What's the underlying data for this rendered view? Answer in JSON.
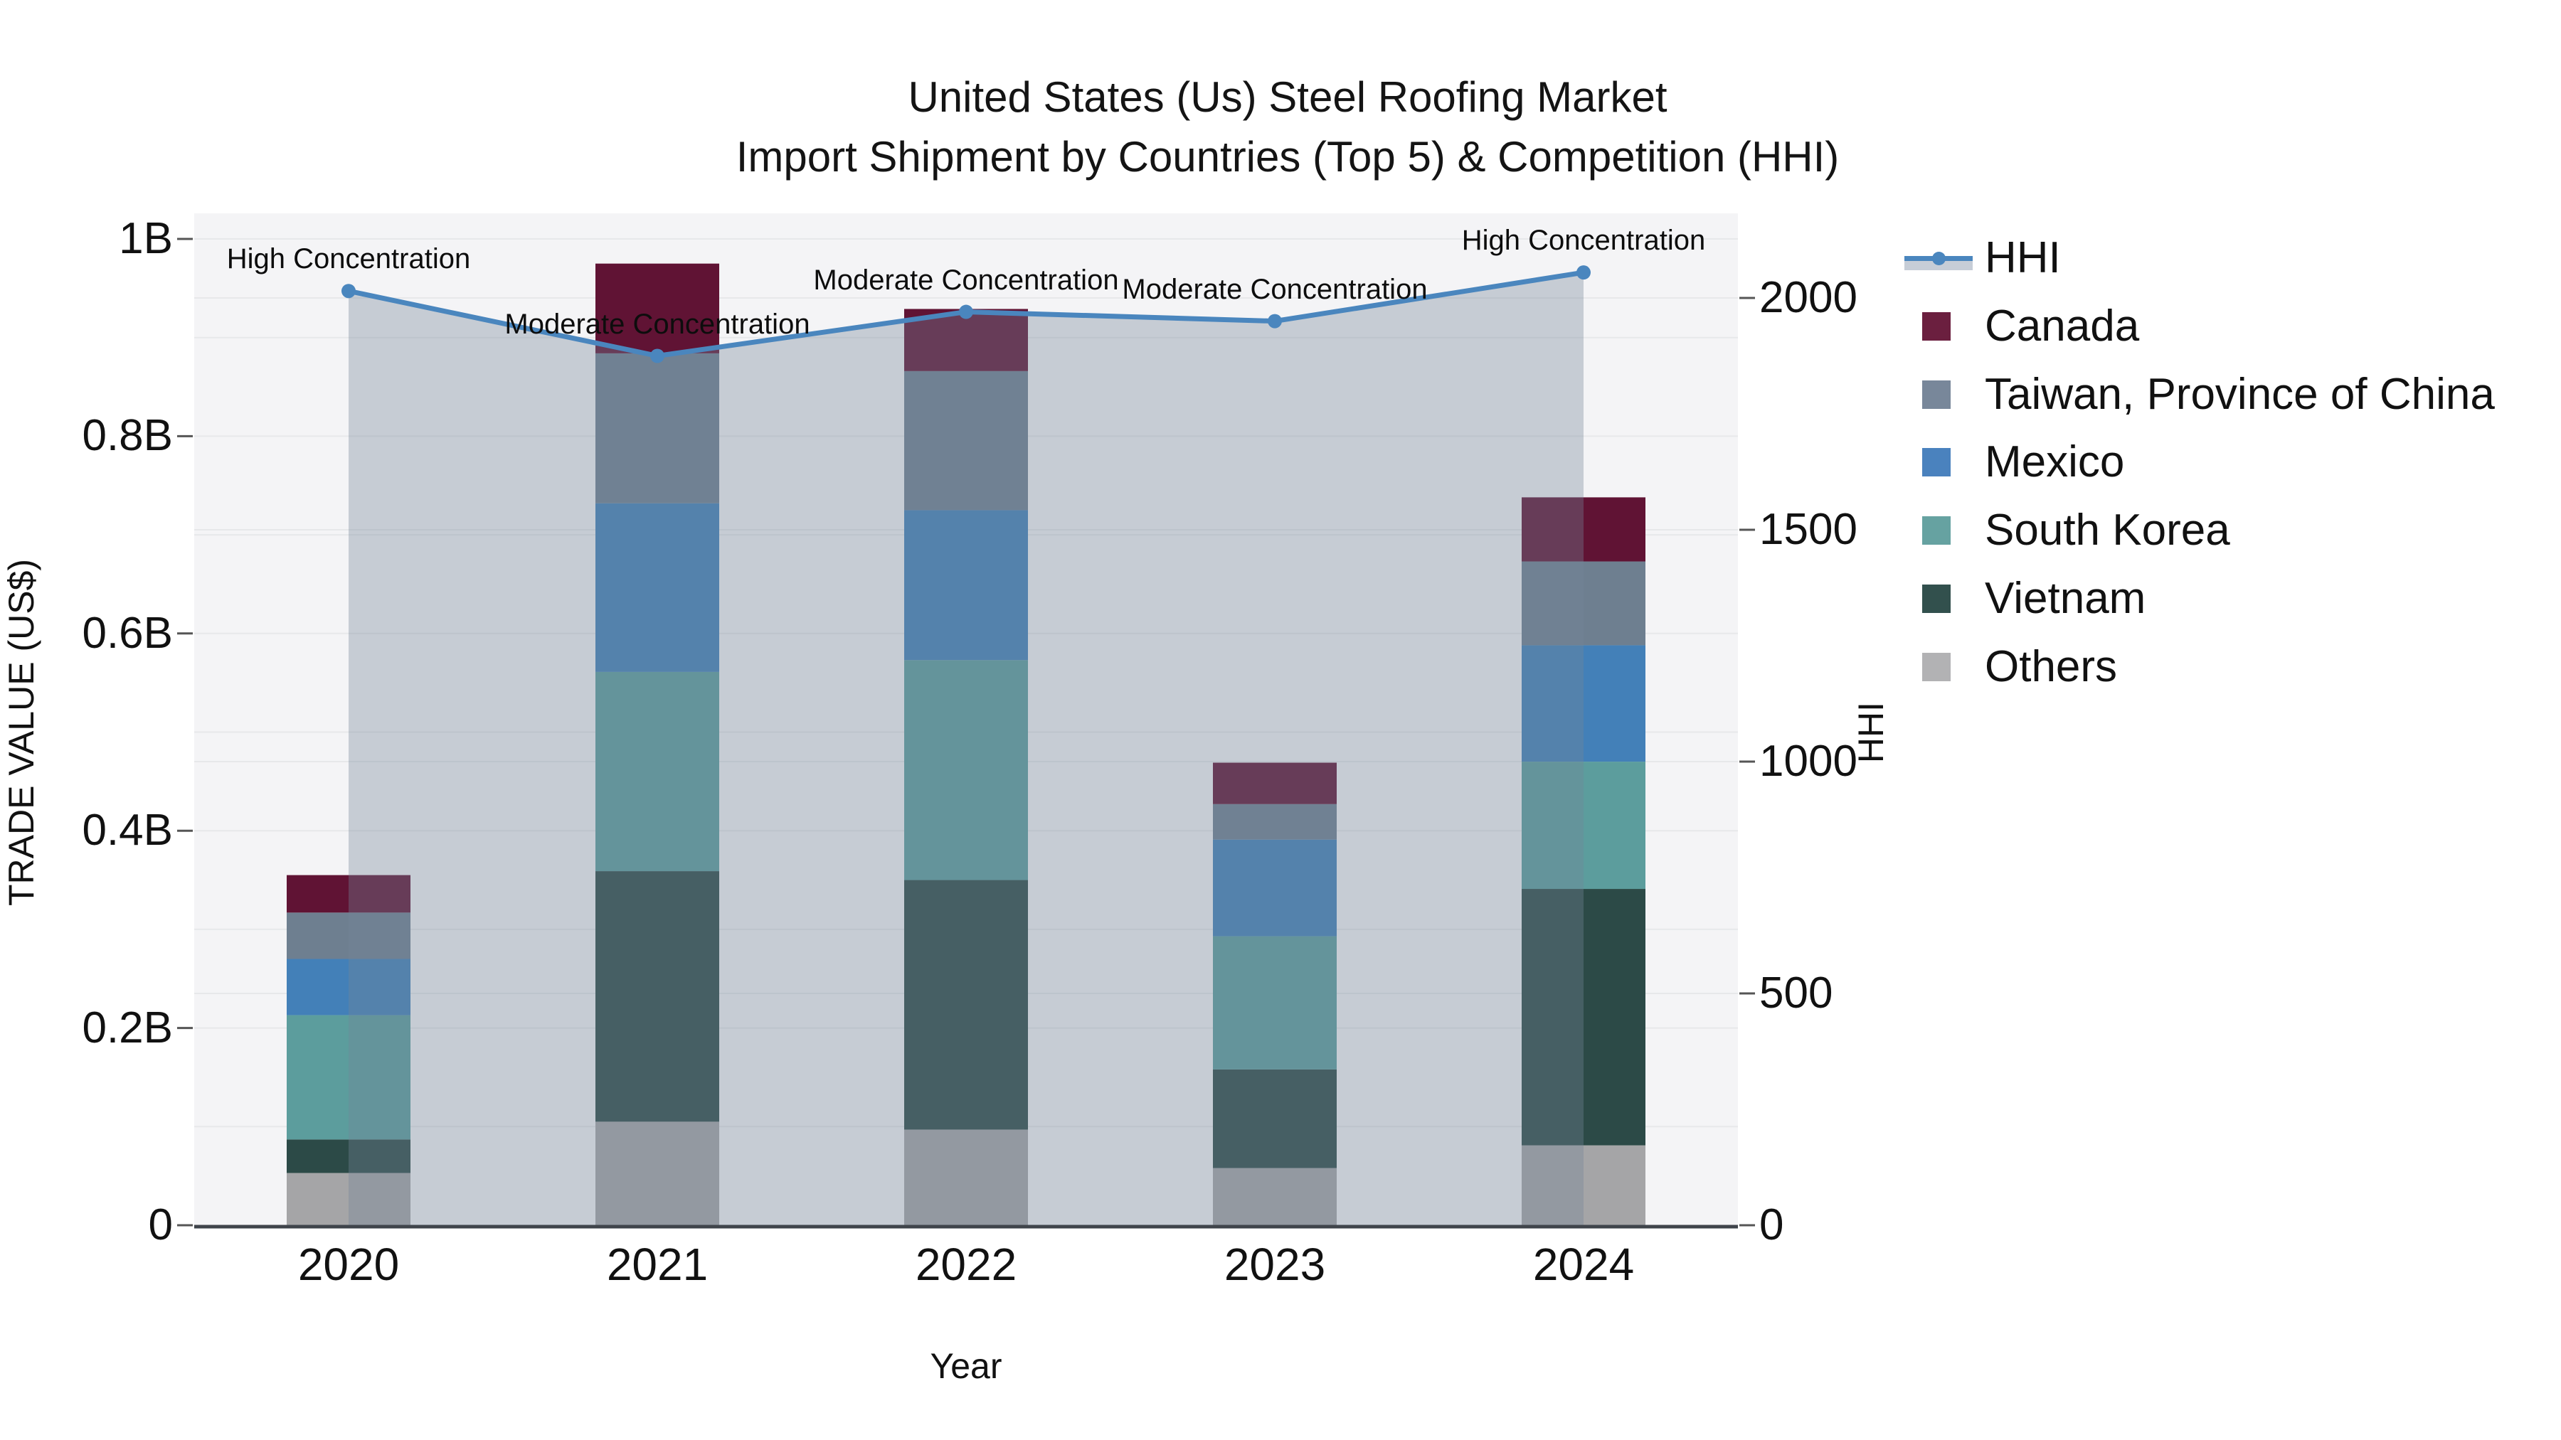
{
  "title": {
    "line1": "United States (Us) Steel Roofing Market",
    "line2": "Import Shipment by Countries (Top 5) & Competition (HHI)"
  },
  "axes": {
    "x_title": "Year",
    "y_left_title": "TRADE VALUE (US$)",
    "y_right_title": "HHI",
    "y_left_ticks": [
      {
        "label": "1B",
        "value": 1.0
      },
      {
        "label": "0.8B",
        "value": 0.8
      },
      {
        "label": "0.6B",
        "value": 0.6
      },
      {
        "label": "0.4B",
        "value": 0.4
      },
      {
        "label": "0.2B",
        "value": 0.2
      },
      {
        "label": "0",
        "value": 0
      }
    ],
    "y_right_ticks": [
      {
        "label": "2000",
        "value": 2000
      },
      {
        "label": "1500",
        "value": 1500
      },
      {
        "label": "1000",
        "value": 1000
      },
      {
        "label": "500",
        "value": 500
      },
      {
        "label": "0",
        "value": 0
      }
    ]
  },
  "legend": {
    "items": [
      {
        "label": "HHI",
        "type": "line",
        "color": "#4a86be",
        "band_color": "#c6cdd7"
      },
      {
        "label": "Canada",
        "type": "swatch",
        "color": "#6b1f3f"
      },
      {
        "label": "Taiwan, Province of China",
        "type": "swatch",
        "color": "#78879a"
      },
      {
        "label": "Mexico",
        "type": "swatch",
        "color": "#4a82be"
      },
      {
        "label": "South Korea",
        "type": "swatch",
        "color": "#66a2a1"
      },
      {
        "label": "Vietnam",
        "type": "swatch",
        "color": "#32504d"
      },
      {
        "label": "Others",
        "type": "swatch",
        "color": "#b2b2b4"
      }
    ]
  },
  "chart_data": {
    "type": "stacked-bar+line",
    "title": "United States (Us) Steel Roofing Market Import Shipment by Countries (Top 5) & Competition (HHI)",
    "xlabel": "Year",
    "ylabel_left": "TRADE VALUE (US$)",
    "ylabel_right": "HHI",
    "categories": [
      "2020",
      "2021",
      "2022",
      "2023",
      "2024"
    ],
    "unit": "billion US$",
    "y_left_range_billion": [
      0,
      1.0
    ],
    "y_right_range": [
      0,
      2130
    ],
    "grid": true,
    "legend_position": "right",
    "stack_order_bottom_to_top": [
      "Others",
      "Vietnam",
      "South Korea",
      "Mexico",
      "Taiwan, Province of China",
      "Canada"
    ],
    "series": [
      {
        "name": "Others",
        "color": "#a5a5a7",
        "values_billion": [
          0.053,
          0.105,
          0.097,
          0.058,
          0.081
        ]
      },
      {
        "name": "Vietnam",
        "color": "#2c4a47",
        "values_billion": [
          0.034,
          0.254,
          0.253,
          0.1,
          0.26
        ]
      },
      {
        "name": "South Korea",
        "color": "#5c9d9d",
        "values_billion": [
          0.126,
          0.202,
          0.223,
          0.135,
          0.129
        ]
      },
      {
        "name": "Mexico",
        "color": "#4380b8",
        "values_billion": [
          0.057,
          0.171,
          0.152,
          0.098,
          0.118
        ]
      },
      {
        "name": "Taiwan, Province of China",
        "color": "#6e7f90",
        "values_billion": [
          0.047,
          0.152,
          0.141,
          0.036,
          0.085
        ]
      },
      {
        "name": "Canada",
        "color": "#601334",
        "values_billion": [
          0.038,
          0.091,
          0.063,
          0.042,
          0.065
        ]
      }
    ],
    "totals_billion": [
      0.355,
      0.975,
      0.93,
      0.469,
      0.738
    ],
    "hhi_line": {
      "name": "HHI",
      "color": "#4a86be",
      "area_fill": "rgba(117,133,152,0.36)",
      "values": [
        2015,
        1875,
        1970,
        1950,
        2055
      ]
    },
    "annotations": [
      {
        "year": "2020",
        "text": "High Concentration"
      },
      {
        "year": "2021",
        "text": "Moderate Concentration"
      },
      {
        "year": "2022",
        "text": "Moderate Concentration"
      },
      {
        "year": "2023",
        "text": "Moderate Concentration"
      },
      {
        "year": "2024",
        "text": "High Concentration"
      }
    ]
  }
}
